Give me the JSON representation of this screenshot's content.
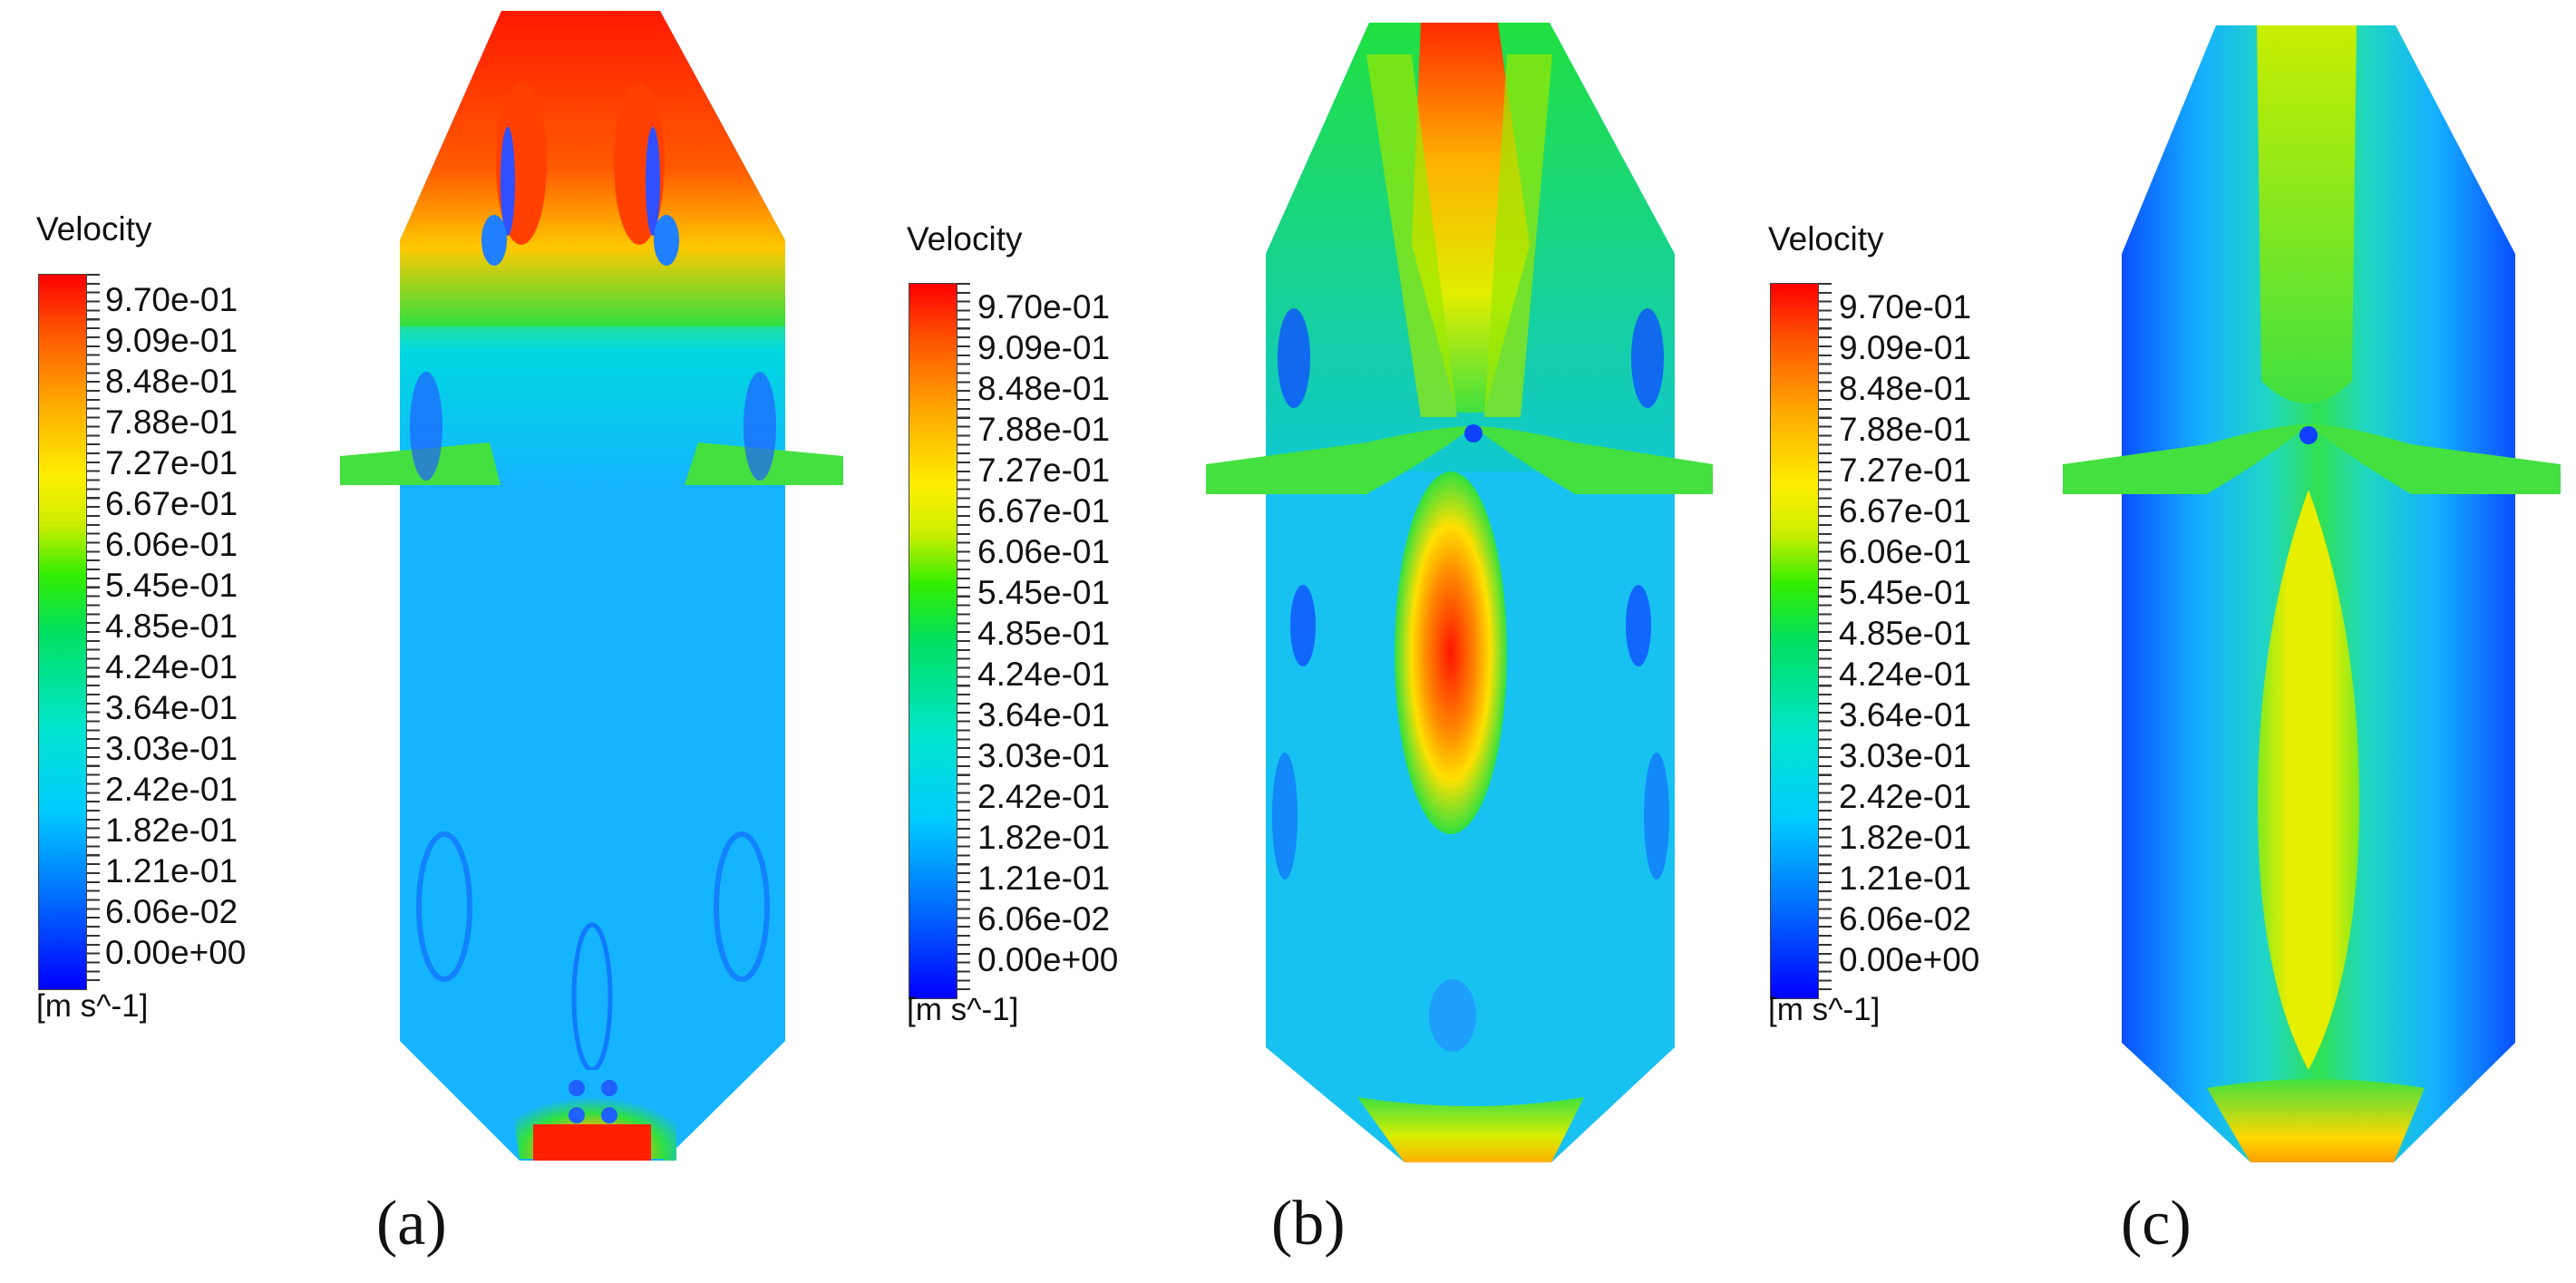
{
  "panels": [
    {
      "id": "a",
      "caption": "(a)"
    },
    {
      "id": "b",
      "caption": "(b)"
    },
    {
      "id": "c",
      "caption": "(c)"
    }
  ],
  "legend": {
    "title": "Velocity",
    "units": "[m s^-1]",
    "ticks": [
      "9.70e-01",
      "9.09e-01",
      "8.48e-01",
      "7.88e-01",
      "7.27e-01",
      "6.67e-01",
      "6.06e-01",
      "5.45e-01",
      "4.85e-01",
      "4.24e-01",
      "3.64e-01",
      "3.03e-01",
      "2.42e-01",
      "1.82e-01",
      "1.21e-01",
      "6.06e-02",
      "0.00e+00"
    ]
  },
  "colors": {
    "low": "#0000ff",
    "mid": "#00e060",
    "high": "#ff0000",
    "yellow": "#ffee00",
    "cyan": "#00ccff"
  }
}
